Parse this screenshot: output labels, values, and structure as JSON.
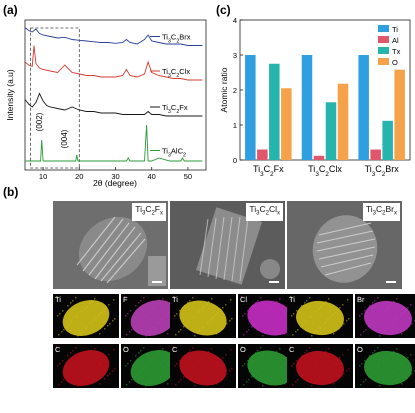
{
  "panels": {
    "a": {
      "label": "(a)"
    },
    "b": {
      "label": "(b)"
    },
    "c": {
      "label": "(c)"
    }
  },
  "chart_data": [
    {
      "type": "line",
      "panel": "a",
      "xlabel": "2θ (degree)",
      "ylabel": "Intensity (a.u)",
      "xlim": [
        5,
        55
      ],
      "xticks": [
        10,
        20,
        30,
        40,
        50
      ],
      "series": [
        {
          "name": "Ti3C2Brx",
          "color": "#2b3f9e",
          "x": [
            5,
            6,
            7,
            8,
            9,
            10,
            12,
            14,
            16,
            18,
            20,
            22,
            24,
            26,
            28,
            30,
            32,
            33,
            34,
            36,
            38,
            39,
            40,
            42,
            44,
            46,
            48,
            50,
            52,
            54
          ],
          "y": [
            0.95,
            0.93,
            0.92,
            0.94,
            0.91,
            0.9,
            0.89,
            0.88,
            0.885,
            0.87,
            0.865,
            0.86,
            0.855,
            0.85,
            0.85,
            0.845,
            0.85,
            0.87,
            0.85,
            0.84,
            0.87,
            0.9,
            0.86,
            0.85,
            0.84,
            0.84,
            0.84,
            0.83,
            0.83,
            0.83
          ]
        },
        {
          "name": "Ti3C2Clx",
          "color": "#d63b2f",
          "x": [
            5,
            6,
            7,
            7.5,
            8,
            9,
            10,
            12,
            14,
            16,
            18,
            20,
            22,
            24,
            26,
            28,
            30,
            32,
            33,
            34,
            36,
            38,
            39,
            40,
            42,
            44,
            46,
            48,
            50,
            52,
            54
          ],
          "y": [
            0.72,
            0.7,
            0.69,
            0.83,
            0.71,
            0.68,
            0.67,
            0.66,
            0.65,
            0.7,
            0.65,
            0.64,
            0.63,
            0.63,
            0.62,
            0.62,
            0.62,
            0.63,
            0.67,
            0.63,
            0.62,
            0.64,
            0.72,
            0.65,
            0.63,
            0.62,
            0.61,
            0.61,
            0.6,
            0.6,
            0.6
          ]
        },
        {
          "name": "Ti3C2Fx",
          "color": "#1a1a1a",
          "x": [
            5,
            6,
            7,
            8,
            9,
            10,
            11,
            12,
            14,
            16,
            18,
            20,
            22,
            24,
            26,
            28,
            30,
            32,
            34,
            36,
            38,
            39,
            40,
            42,
            44,
            46,
            48,
            50,
            52,
            54
          ],
          "y": [
            0.47,
            0.44,
            0.42,
            0.45,
            0.51,
            0.46,
            0.43,
            0.42,
            0.41,
            0.4,
            0.42,
            0.4,
            0.39,
            0.39,
            0.38,
            0.38,
            0.38,
            0.37,
            0.37,
            0.37,
            0.37,
            0.39,
            0.37,
            0.37,
            0.36,
            0.36,
            0.36,
            0.36,
            0.36,
            0.36
          ]
        },
        {
          "name": "Ti3AlC2",
          "color": "#2a9a3a",
          "x": [
            5,
            8,
            9.3,
            9.6,
            10,
            12,
            15,
            18,
            19,
            19.3,
            19.6,
            20,
            25,
            30,
            33,
            33.5,
            34,
            36,
            38,
            38.6,
            39,
            40,
            42,
            45,
            48,
            48.5,
            49,
            52,
            54
          ],
          "y": [
            0.06,
            0.06,
            0.06,
            0.2,
            0.06,
            0.06,
            0.06,
            0.06,
            0.06,
            0.1,
            0.06,
            0.06,
            0.06,
            0.06,
            0.06,
            0.08,
            0.06,
            0.06,
            0.06,
            0.3,
            0.06,
            0.06,
            0.08,
            0.06,
            0.06,
            0.08,
            0.06,
            0.06,
            0.06
          ]
        }
      ],
      "annotations": [
        "(002)",
        "(004)"
      ]
    },
    {
      "type": "bar",
      "panel": "c",
      "ylabel": "Atomic ratio",
      "ylim": [
        0,
        4
      ],
      "yticks": [
        0,
        1,
        2,
        3,
        4
      ],
      "categories": [
        "Ti3C2Fx",
        "Ti3C2Clx",
        "Ti3C2Brx"
      ],
      "legend_position": "top-right",
      "series": [
        {
          "name": "Ti",
          "color": "#2f9fe0",
          "values": [
            3.0,
            3.0,
            3.0
          ]
        },
        {
          "name": "Al",
          "color": "#e0566a",
          "values": [
            0.3,
            0.12,
            0.3
          ]
        },
        {
          "name": "Tx",
          "color": "#26b5ae",
          "values": [
            2.75,
            1.65,
            1.12
          ]
        },
        {
          "name": "O",
          "color": "#f5a24a",
          "values": [
            2.05,
            2.18,
            2.58
          ]
        }
      ]
    }
  ],
  "sem": [
    {
      "label_main": "Ti",
      "label_sub": "3",
      "label_c": "C",
      "label_sub2": "2",
      "label_x": "F",
      "label_sub3": "x"
    },
    {
      "label_main": "Ti",
      "label_sub": "3",
      "label_c": "C",
      "label_sub2": "2",
      "label_x": "Cl",
      "label_sub3": "x"
    },
    {
      "label_main": "Ti",
      "label_sub": "3",
      "label_c": "C",
      "label_sub2": "2",
      "label_x": "Br",
      "label_sub3": "x"
    }
  ],
  "maps": [
    {
      "element": "Ti",
      "color": "#d4c21a"
    },
    {
      "element": "F",
      "color": "#b83fb6"
    },
    {
      "element": "Ti",
      "color": "#d4c21a"
    },
    {
      "element": "Cl",
      "color": "#c62dc4"
    },
    {
      "element": "Ti",
      "color": "#d4c21a"
    },
    {
      "element": "Br",
      "color": "#c037c0"
    },
    {
      "element": "C",
      "color": "#c0121e"
    },
    {
      "element": "O",
      "color": "#2c9a33"
    },
    {
      "element": "C",
      "color": "#c0121e"
    },
    {
      "element": "O",
      "color": "#2c9a33"
    },
    {
      "element": "C",
      "color": "#c0121e"
    },
    {
      "element": "O",
      "color": "#2c9a33"
    }
  ]
}
